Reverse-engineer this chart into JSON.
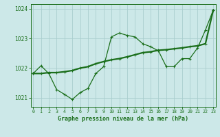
{
  "title": "Graphe pression niveau de la mer (hPa)",
  "xlabel_hours": [
    0,
    1,
    2,
    3,
    4,
    5,
    6,
    7,
    8,
    9,
    10,
    11,
    12,
    13,
    14,
    15,
    16,
    17,
    18,
    19,
    20,
    21,
    22,
    23
  ],
  "line1_y": [
    1021.82,
    1022.08,
    1021.82,
    1021.28,
    1021.12,
    1020.95,
    1021.18,
    1021.32,
    1021.82,
    1022.05,
    1023.05,
    1023.18,
    1023.1,
    1023.05,
    1022.82,
    1022.72,
    1022.58,
    1022.05,
    1022.05,
    1022.32,
    1022.32,
    1022.68,
    1023.28,
    1023.95
  ],
  "line2_y": [
    1021.82,
    1021.82,
    1021.85,
    1021.85,
    1021.88,
    1021.92,
    1022.0,
    1022.05,
    1022.15,
    1022.22,
    1022.28,
    1022.32,
    1022.38,
    1022.45,
    1022.52,
    1022.55,
    1022.6,
    1022.62,
    1022.65,
    1022.68,
    1022.72,
    1022.75,
    1022.82,
    1023.95
  ],
  "line_color": "#1a6e1a",
  "bg_color": "#cce8e8",
  "grid_color": "#aacece",
  "ylim": [
    1020.7,
    1024.15
  ],
  "yticks": [
    1021,
    1022,
    1023,
    1024
  ],
  "xlim": [
    -0.3,
    23.3
  ]
}
